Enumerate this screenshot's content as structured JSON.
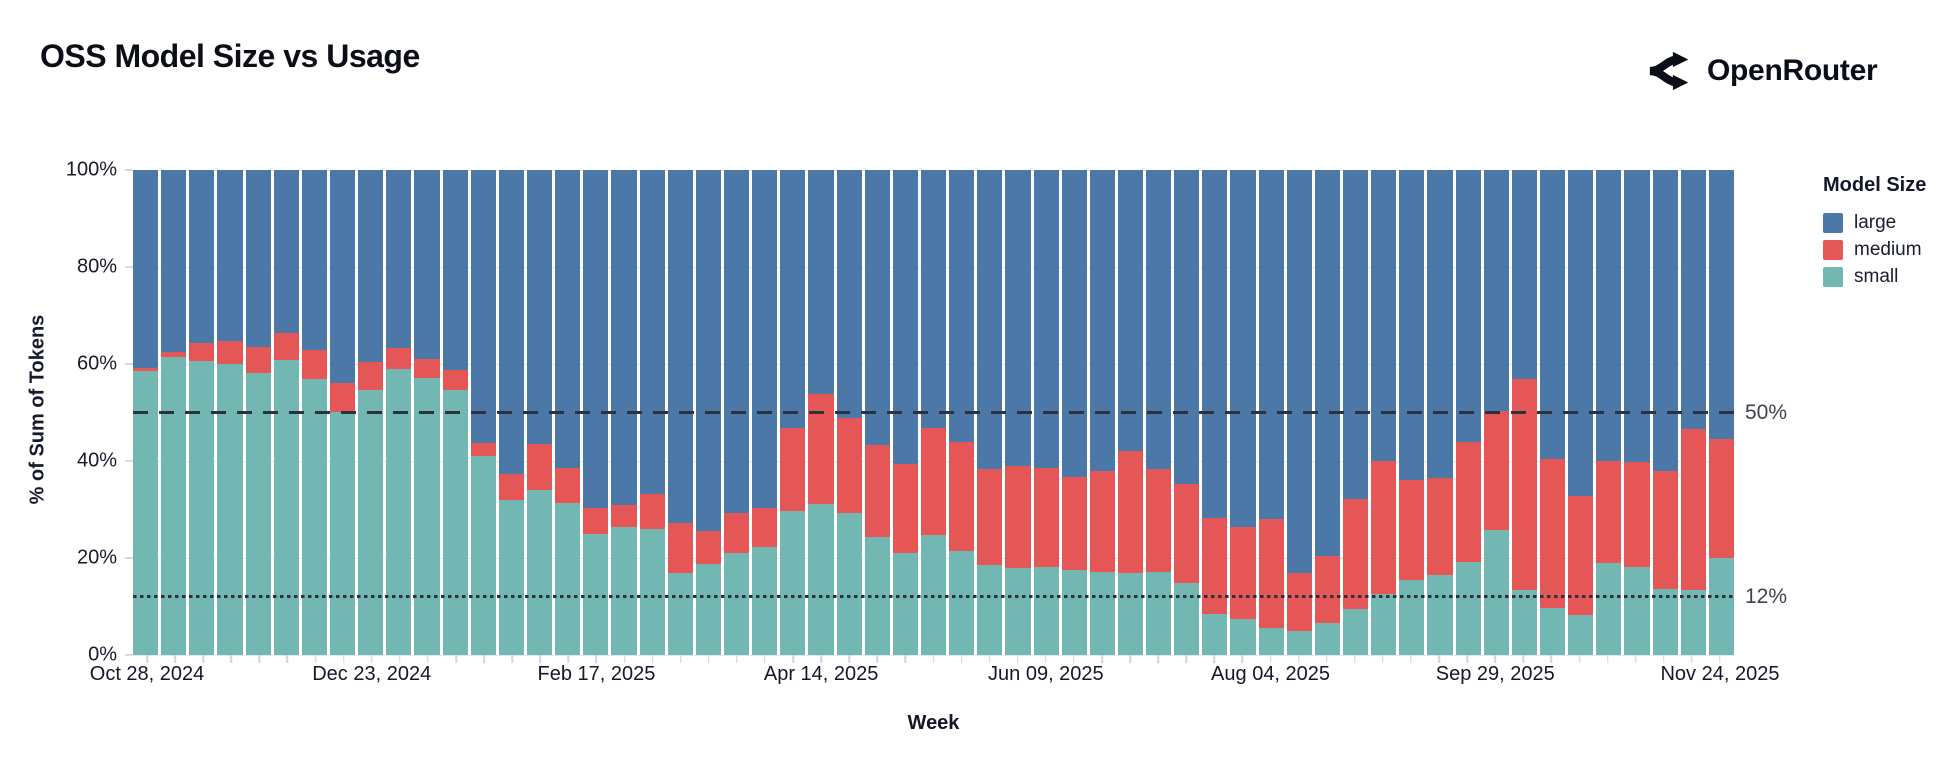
{
  "header": {
    "title": "OSS Model Size vs Usage",
    "brand": "OpenRouter"
  },
  "chart_data": {
    "type": "bar",
    "variant": "stacked-100-percent",
    "title": "OSS Model Size vs Usage",
    "xlabel": "Week",
    "ylabel": "% of Sum of Tokens",
    "ylim": [
      0,
      100
    ],
    "grid": true,
    "y_tick_labels": [
      "0%",
      "20%",
      "40%",
      "60%",
      "80%",
      "100%"
    ],
    "x_tick_labels": [
      "Oct 28, 2024",
      "Dec 23, 2024",
      "Feb 17, 2025",
      "Apr 14, 2025",
      "Jun 09, 2025",
      "Aug 04, 2025",
      "Sep 29, 2025",
      "Nov 24, 2025"
    ],
    "x_tick_label_positions": [
      0,
      8,
      16,
      24,
      32,
      40,
      48,
      56
    ],
    "legend": {
      "title": "Model Size",
      "position": "right",
      "entries": [
        {
          "label": "large",
          "color": "#4C78A8"
        },
        {
          "label": "medium",
          "color": "#E45756"
        },
        {
          "label": "small",
          "color": "#72B7B2"
        }
      ]
    },
    "stack_order_bottom_to_top": [
      "small",
      "medium",
      "large"
    ],
    "categories": [
      "Oct 28, 2024",
      "Nov 04, 2024",
      "Nov 11, 2024",
      "Nov 18, 2024",
      "Nov 25, 2024",
      "Dec 02, 2024",
      "Dec 09, 2024",
      "Dec 16, 2024",
      "Dec 23, 2024",
      "Dec 30, 2024",
      "Jan 06, 2025",
      "Jan 13, 2025",
      "Jan 20, 2025",
      "Jan 27, 2025",
      "Feb 03, 2025",
      "Feb 10, 2025",
      "Feb 17, 2025",
      "Feb 24, 2025",
      "Mar 03, 2025",
      "Mar 10, 2025",
      "Mar 17, 2025",
      "Mar 24, 2025",
      "Mar 31, 2025",
      "Apr 07, 2025",
      "Apr 14, 2025",
      "Apr 21, 2025",
      "Apr 28, 2025",
      "May 05, 2025",
      "May 12, 2025",
      "May 19, 2025",
      "May 26, 2025",
      "Jun 02, 2025",
      "Jun 09, 2025",
      "Jun 16, 2025",
      "Jun 23, 2025",
      "Jun 30, 2025",
      "Jul 07, 2025",
      "Jul 14, 2025",
      "Jul 21, 2025",
      "Jul 28, 2025",
      "Aug 04, 2025",
      "Aug 11, 2025",
      "Aug 18, 2025",
      "Aug 25, 2025",
      "Sep 01, 2025",
      "Sep 08, 2025",
      "Sep 15, 2025",
      "Sep 22, 2025",
      "Sep 29, 2025",
      "Oct 06, 2025",
      "Oct 13, 2025",
      "Oct 20, 2025",
      "Oct 27, 2025",
      "Nov 03, 2025",
      "Nov 10, 2025",
      "Nov 17, 2025",
      "Nov 24, 2025"
    ],
    "series": [
      {
        "name": "large",
        "color": "#4C78A8",
        "values": [
          40.9,
          37.5,
          35.6,
          35.3,
          36.5,
          33.6,
          37.2,
          44.0,
          39.6,
          36.7,
          39.0,
          41.3,
          56.3,
          62.7,
          56.4,
          61.4,
          69.6,
          69.0,
          66.8,
          72.7,
          74.5,
          70.8,
          69.7,
          53.1,
          46.2,
          51.2,
          56.8,
          60.6,
          53.2,
          56.1,
          61.6,
          61.1,
          61.4,
          63.3,
          62.1,
          57.9,
          61.7,
          64.8,
          71.8,
          73.6,
          72.0,
          83.0,
          79.5,
          67.9,
          59.9,
          64.0,
          63.5,
          56.1,
          49.7,
          43.0,
          59.5,
          67.2,
          59.9,
          60.2,
          62.0,
          53.5,
          55.5
        ]
      },
      {
        "name": "medium",
        "color": "#E45756",
        "values": [
          0.5,
          1.0,
          3.8,
          4.6,
          5.4,
          5.6,
          5.9,
          6.0,
          5.8,
          4.3,
          3.8,
          4.1,
          2.7,
          5.3,
          9.5,
          7.2,
          5.4,
          4.7,
          7.2,
          10.4,
          6.8,
          8.2,
          8.1,
          17.3,
          22.6,
          19.6,
          18.8,
          18.4,
          22.0,
          22.4,
          19.8,
          20.9,
          20.4,
          19.1,
          20.8,
          25.2,
          21.2,
          20.4,
          19.7,
          18.9,
          22.5,
          12.0,
          14.0,
          22.6,
          27.6,
          20.5,
          20.1,
          24.8,
          24.5,
          43.5,
          30.8,
          24.6,
          21.2,
          21.6,
          24.3,
          33.1,
          24.5
        ]
      },
      {
        "name": "small",
        "color": "#72B7B2",
        "values": [
          58.6,
          61.5,
          60.6,
          60.1,
          58.1,
          60.8,
          56.9,
          50.0,
          54.6,
          59.0,
          57.2,
          54.6,
          41.0,
          32.0,
          34.1,
          31.4,
          25.0,
          26.3,
          26.0,
          16.9,
          18.7,
          21.0,
          22.2,
          29.6,
          31.2,
          29.2,
          24.4,
          21.0,
          24.8,
          21.5,
          18.6,
          18.0,
          18.2,
          17.6,
          17.1,
          16.9,
          17.1,
          14.8,
          8.5,
          7.5,
          5.5,
          5.0,
          6.5,
          9.5,
          12.5,
          15.5,
          16.4,
          19.1,
          25.8,
          13.5,
          9.7,
          8.2,
          18.9,
          18.2,
          13.7,
          13.4,
          20.0
        ]
      }
    ],
    "annotations": [
      {
        "label": "50%",
        "y": 50,
        "line_style": "dashed"
      },
      {
        "label": "12%",
        "y": 12,
        "line_style": "dotted"
      }
    ]
  },
  "colors": {
    "large": "#4C78A8",
    "medium": "#E45756",
    "small": "#72B7B2",
    "annotation_line": "#2d313d",
    "annotation_text": "#3e4352",
    "grid": "#e4e7ee",
    "axis_text": "#14172a",
    "title_text": "#0c0e17"
  }
}
